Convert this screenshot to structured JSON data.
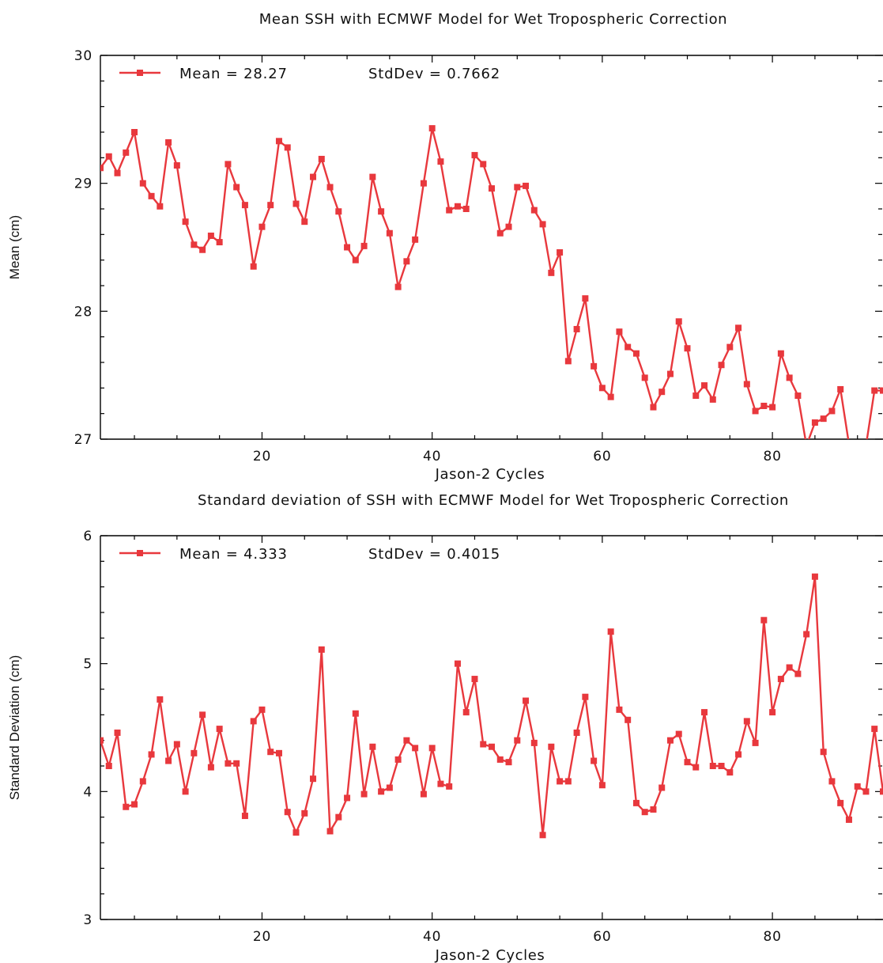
{
  "chart_data": [
    {
      "type": "line",
      "title": "Mean SSH with ECMWF Model for Wet Tropospheric Correction",
      "xlabel": "Jason-2 Cycles",
      "ylabel": "Mean (cm)",
      "xlim": [
        1,
        93
      ],
      "ylim": [
        27,
        30
      ],
      "xticks": [
        20,
        40,
        60,
        80
      ],
      "yticks": [
        27,
        28,
        29,
        30
      ],
      "legend": {
        "placement": "top-left",
        "mean_text": "Mean = 28.27",
        "std_text": "StdDev = 0.7662"
      },
      "color": "#e8383d",
      "series": [
        {
          "values": [
            29.12,
            29.21,
            29.08,
            29.24,
            29.4,
            29.0,
            28.9,
            28.82,
            29.32,
            29.14,
            28.7,
            28.52,
            28.48,
            28.59,
            28.54,
            29.15,
            28.97,
            28.83,
            28.35,
            28.66,
            28.83,
            29.33,
            29.28,
            28.84,
            28.7,
            29.05,
            29.19,
            28.97,
            28.78,
            28.5,
            28.4,
            28.51,
            29.05,
            28.78,
            28.61,
            28.19,
            28.39,
            28.56,
            29.0,
            29.43,
            29.17,
            28.79,
            28.82,
            28.8,
            29.22,
            29.15,
            28.96,
            28.61,
            28.66,
            28.97,
            28.98,
            28.79,
            28.68,
            28.3,
            28.46,
            27.61,
            27.86,
            28.1,
            27.57,
            27.4,
            27.33,
            27.84,
            27.72,
            27.67,
            27.48,
            27.25,
            27.37,
            27.51,
            27.92,
            27.71,
            27.34,
            27.42,
            27.31,
            27.58,
            27.72,
            27.87,
            27.43,
            27.22,
            27.26,
            27.25,
            27.67,
            27.48,
            27.34,
            26.95,
            27.13,
            27.16,
            27.22,
            27.39,
            26.96,
            26.9,
            26.95,
            27.38,
            27.38
          ]
        }
      ]
    },
    {
      "type": "line",
      "title": "Standard deviation of SSH with ECMWF Model for Wet Tropospheric Correction",
      "xlabel": "Jason-2 Cycles",
      "ylabel": "Standard Deviation (cm)",
      "xlim": [
        1,
        93
      ],
      "ylim": [
        3,
        6
      ],
      "xticks": [
        20,
        40,
        60,
        80
      ],
      "yticks": [
        3,
        4,
        5,
        6
      ],
      "legend": {
        "placement": "top-left",
        "mean_text": "Mean = 4.333",
        "std_text": "StdDev = 0.4015"
      },
      "color": "#e8383d",
      "series": [
        {
          "values": [
            4.4,
            4.2,
            4.46,
            3.88,
            3.9,
            4.08,
            4.29,
            4.72,
            4.24,
            4.37,
            4.0,
            4.3,
            4.6,
            4.19,
            4.49,
            4.22,
            4.22,
            3.81,
            4.55,
            4.64,
            4.31,
            4.3,
            3.84,
            3.68,
            3.83,
            4.1,
            5.11,
            3.69,
            3.8,
            3.95,
            4.61,
            3.98,
            4.35,
            4.0,
            4.03,
            4.25,
            4.4,
            4.34,
            3.98,
            4.34,
            4.06,
            4.04,
            5.0,
            4.62,
            4.88,
            4.37,
            4.35,
            4.25,
            4.23,
            4.4,
            4.71,
            4.38,
            3.66,
            4.35,
            4.08,
            4.08,
            4.46,
            4.74,
            4.24,
            4.05,
            5.25,
            4.64,
            4.56,
            3.91,
            3.84,
            3.86,
            4.03,
            4.4,
            4.45,
            4.23,
            4.19,
            4.62,
            4.2,
            4.2,
            4.15,
            4.29,
            4.55,
            4.38,
            5.34,
            4.62,
            4.88,
            4.97,
            4.92,
            5.23,
            5.68,
            4.31,
            4.08,
            3.91,
            3.78,
            4.04,
            4.0,
            4.49,
            4.0
          ]
        }
      ]
    }
  ]
}
